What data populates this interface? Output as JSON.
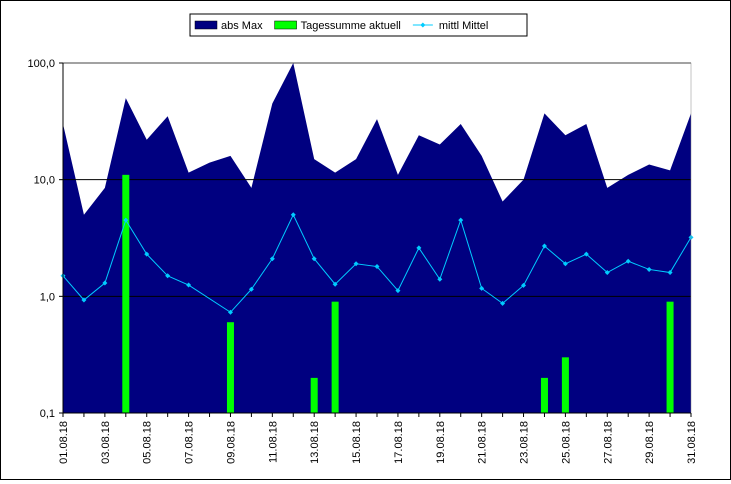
{
  "chart_data": {
    "type": "area",
    "title": "",
    "xlabel": "",
    "ylabel": "",
    "yscale": "log",
    "ylim": [
      0.1,
      100.0
    ],
    "grid": "horizontal major lines",
    "legend_position": "top-center",
    "y_tick_labels": [
      "0,1",
      "1,0",
      "10,0",
      "100,0"
    ],
    "y_tick_values": [
      0.1,
      1.0,
      10.0,
      100.0
    ],
    "x": [
      "01.08.18",
      "02.08.18",
      "03.08.18",
      "04.08.18",
      "05.08.18",
      "06.08.18",
      "07.08.18",
      "08.08.18",
      "09.08.18",
      "10.08.18",
      "11.08.18",
      "12.08.18",
      "13.08.18",
      "14.08.18",
      "15.08.18",
      "16.08.18",
      "17.08.18",
      "18.08.18",
      "19.08.18",
      "20.08.18",
      "21.08.18",
      "22.08.18",
      "23.08.18",
      "24.08.18",
      "25.08.18",
      "26.08.18",
      "27.08.18",
      "28.08.18",
      "29.08.18",
      "30.08.18",
      "31.08.18"
    ],
    "x_tick_labels": [
      "01.08.18",
      "03.08.18",
      "05.08.18",
      "07.08.18",
      "09.08.18",
      "11.08.18",
      "13.08.18",
      "15.08.18",
      "17.08.18",
      "19.08.18",
      "21.08.18",
      "23.08.18",
      "25.08.18",
      "27.08.18",
      "29.08.18",
      "31.08.18"
    ],
    "series": [
      {
        "name": "abs Max",
        "kind": "area",
        "color": "#000080",
        "values": [
          30,
          5,
          8.5,
          50,
          22,
          35,
          11.5,
          14,
          16,
          8.5,
          45,
          100,
          15,
          11.5,
          15,
          33,
          11,
          24,
          20,
          30,
          16,
          6.5,
          10,
          37,
          24,
          30,
          8.5,
          11,
          13.5,
          12,
          37
        ]
      },
      {
        "name": "Tagessumme aktuell",
        "kind": "bar",
        "color": "#00ff00",
        "values": [
          null,
          null,
          null,
          11,
          null,
          null,
          null,
          null,
          0.6,
          null,
          null,
          null,
          0.2,
          0.9,
          null,
          null,
          null,
          null,
          null,
          null,
          null,
          null,
          null,
          0.2,
          0.3,
          null,
          null,
          null,
          null,
          0.9,
          null
        ]
      },
      {
        "name": "mittl Mittel",
        "kind": "line",
        "color": "#00ccff",
        "values": [
          1.5,
          0.93,
          1.3,
          4.5,
          2.3,
          1.5,
          1.25,
          null,
          0.73,
          1.15,
          2.1,
          5.0,
          2.1,
          1.27,
          1.9,
          1.8,
          1.12,
          2.6,
          1.4,
          4.5,
          1.17,
          0.87,
          1.24,
          2.7,
          1.9,
          2.3,
          1.6,
          2.0,
          1.7,
          1.6,
          3.2
        ]
      }
    ]
  }
}
